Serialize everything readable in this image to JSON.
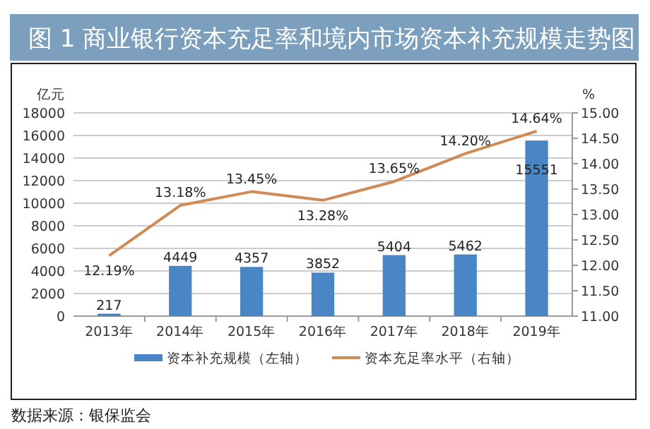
{
  "chart_data": {
    "type": "bar",
    "title": "图 1  商业银行资本充足率和境内市场资本补充规模走势图",
    "categories": [
      "2013年",
      "2014年",
      "2015年",
      "2016年",
      "2017年",
      "2018年",
      "2019年"
    ],
    "series": [
      {
        "name": "资本补充规模（左轴）",
        "color": "#4a86c5",
        "values": [
          217,
          4449,
          4357,
          3852,
          5404,
          5462,
          15551
        ],
        "value_labels": [
          "217",
          "4449",
          "4357",
          "3852",
          "5404",
          "5462",
          "15551"
        ]
      },
      {
        "name": "资本充足率水平（右轴）",
        "type": "line",
        "axis": "y2",
        "color": "#d08a55",
        "values": [
          12.19,
          13.18,
          13.45,
          13.28,
          13.65,
          14.2,
          14.64
        ],
        "value_labels": [
          "12.19%",
          "13.18%",
          "13.45%",
          "13.28%",
          "13.65%",
          "14.20%",
          "14.64%"
        ]
      }
    ],
    "ylabel": "亿元",
    "y2label": "%",
    "ylim": [
      0,
      18000
    ],
    "yticks": [
      0,
      2000,
      4000,
      6000,
      8000,
      10000,
      12000,
      14000,
      16000,
      18000
    ],
    "y2lim": [
      11,
      15
    ],
    "y2ticks": [
      {
        "value": 11,
        "label": "11.00"
      },
      {
        "value": 11.5,
        "label": "11.50"
      },
      {
        "value": 12,
        "label": "12.00"
      },
      {
        "value": 12.5,
        "label": "12.50"
      },
      {
        "value": 13,
        "label": "13.00"
      },
      {
        "value": 13.5,
        "label": "13.50"
      },
      {
        "value": 14,
        "label": "14.00"
      },
      {
        "value": 14.5,
        "label": "14.50"
      },
      {
        "value": 15,
        "label": "15.00"
      }
    ],
    "grid": "y",
    "legend": "bottom",
    "marker": "none",
    "annotations": [
      "数据来源：银保监会"
    ]
  }
}
